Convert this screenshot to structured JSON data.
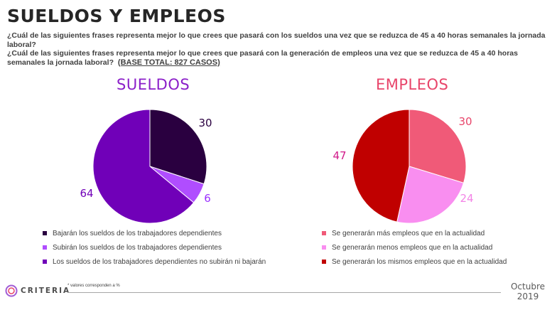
{
  "header": {
    "title": "SUELDOS Y EMPLEOS",
    "question_1": "¿Cuál de las siguientes frases representa mejor lo que crees que pasará con los sueldos una vez que se reduzca de 45 a 40 horas semanales la jornada laboral?",
    "question_2": "¿Cuál de las siguientes frases representa mejor lo que crees que pasará con la generación de empleos una vez que se reduzca de 45 a 40 horas semanales la jornada laboral?",
    "base": "(BASE TOTAL: 827 CASOS)"
  },
  "chart_data": [
    {
      "type": "pie",
      "title": "SUELDOS",
      "title_color": "#8b1fc9",
      "categories": [
        "Bajarán los sueldos de los trabajadores dependientes",
        "Subirán los sueldos de los trabajadores dependientes",
        "Los sueldos de los trabajadores dependientes no subirán ni bajarán"
      ],
      "values": [
        30,
        6,
        64
      ],
      "labels": [
        "30",
        "6",
        "64"
      ],
      "colors": [
        "#2a0040",
        "#b04dff",
        "#7000b8"
      ],
      "label_colors": [
        "#2a0040",
        "#9b30ff",
        "#7000b8"
      ]
    },
    {
      "type": "pie",
      "title": "EMPLEOS",
      "title_color": "#e8456a",
      "categories": [
        "Se generarán más empleos que en la actualidad",
        "Se generarán menos empleos que en la actualidad",
        "Se generarán los mismos empleos que en la actualidad"
      ],
      "values": [
        30,
        24,
        47
      ],
      "labels": [
        "30",
        "24",
        "47"
      ],
      "colors": [
        "#f05a78",
        "#f98ef0",
        "#c00000"
      ],
      "label_colors": [
        "#e8456a",
        "#f383e6",
        "#d11a8a"
      ]
    }
  ],
  "footer": {
    "brand": "CRITERIA",
    "note": "* valores corresponden a %",
    "date_line_1": "Octubre",
    "date_line_2": "2019"
  }
}
